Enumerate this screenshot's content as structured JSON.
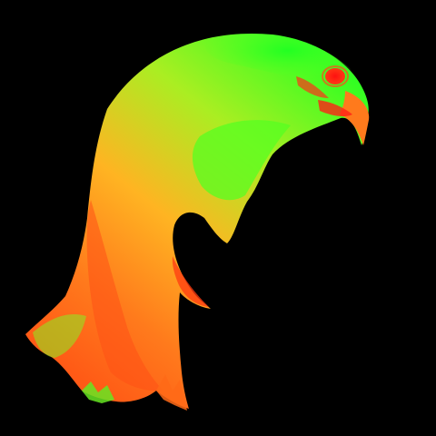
{
  "image": {
    "subject": "bird-head-silhouette",
    "background_color": "#000000",
    "palette": {
      "green": "#33ff22",
      "yellow_green": "#aaee22",
      "orange": "#ff8c22",
      "red_orange": "#ff4a16",
      "red": "#ff1a1a"
    }
  }
}
